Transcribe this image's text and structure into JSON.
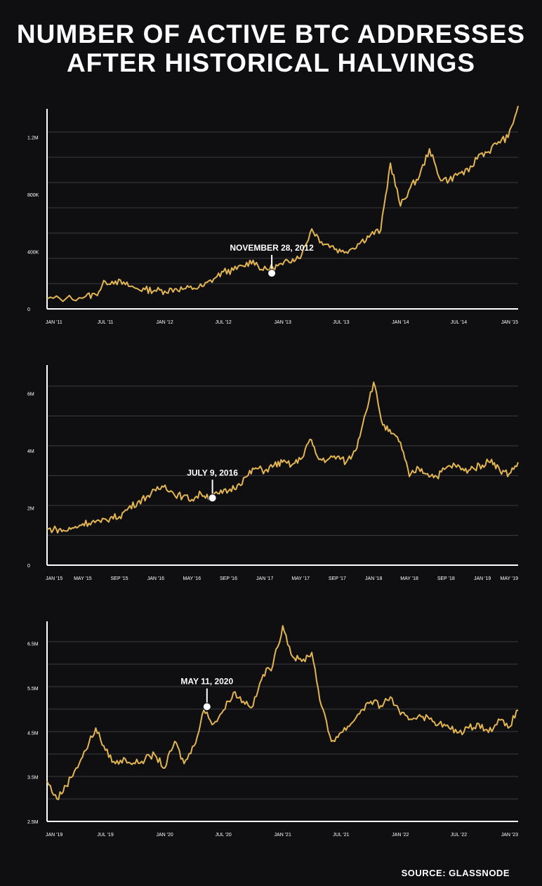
{
  "title": {
    "line1": "NUMBER OF ACTIVE BTC ADDRESSES",
    "line2": "AFTER HISTORICAL HALVINGS"
  },
  "source": "SOURCE: GLASSNODE",
  "colors": {
    "background": "#0f0f12",
    "line": "#e2b552",
    "grid": "#3a3a40",
    "axis": "#ffffff",
    "text": "#ffffff"
  },
  "chart_data": [
    {
      "type": "line",
      "xlabel": "",
      "ylabel": "",
      "ylim": [
        0,
        1400000
      ],
      "grid": true,
      "yticks": [
        0,
        400000,
        800000,
        1200000
      ],
      "yticklabels": [
        "0",
        "400K",
        "800K",
        "1.2M"
      ],
      "xticks": [
        "2011-01",
        "2011-07",
        "2012-01",
        "2012-07",
        "2013-01",
        "2013-07",
        "2014-01",
        "2014-07",
        "2015-01"
      ],
      "xticklabels": [
        "JAN '11",
        "JUL '11",
        "JAN '12",
        "JUL '12",
        "JAN '13",
        "JUL '13",
        "JAN '14",
        "JUL '14",
        "JAN '15"
      ],
      "xlim": [
        "2011-01",
        "2015-01"
      ],
      "annotation": {
        "label": "NOVEMBER 28, 2012",
        "x": "2012-11-28",
        "y": 250000
      },
      "series": [
        {
          "x": [
            "2011-01",
            "2011-03",
            "2011-05",
            "2011-06",
            "2011-07",
            "2011-08",
            "2011-09",
            "2011-10",
            "2011-11",
            "2011-12",
            "2012-01",
            "2012-02",
            "2012-03",
            "2012-04",
            "2012-05",
            "2012-06",
            "2012-07",
            "2012-08",
            "2012-09",
            "2012-10",
            "2012-11",
            "2012-12",
            "2013-01",
            "2013-02",
            "2013-03",
            "2013-04",
            "2013-05",
            "2013-06",
            "2013-07",
            "2013-08",
            "2013-09",
            "2013-10",
            "2013-11",
            "2013-12",
            "2014-01",
            "2014-02",
            "2014-03",
            "2014-04",
            "2014-05",
            "2014-06",
            "2014-07",
            "2014-08",
            "2014-09",
            "2014-10",
            "2014-11",
            "2014-12",
            "2015-01"
          ],
          "values": [
            70000,
            72000,
            88000,
            100000,
            190000,
            195000,
            170000,
            145000,
            135000,
            130000,
            125000,
            140000,
            140000,
            145000,
            160000,
            210000,
            260000,
            270000,
            300000,
            340000,
            270000,
            290000,
            310000,
            350000,
            380000,
            560000,
            470000,
            440000,
            400000,
            420000,
            470000,
            520000,
            550000,
            1020000,
            720000,
            850000,
            930000,
            1120000,
            920000,
            900000,
            950000,
            960000,
            1080000,
            1100000,
            1170000,
            1200000,
            1420000
          ]
        }
      ]
    },
    {
      "type": "line",
      "xlabel": "",
      "ylabel": "",
      "ylim": [
        0,
        7000000
      ],
      "grid": true,
      "yticks": [
        0,
        2000000,
        4000000,
        6000000
      ],
      "yticklabels": [
        "0",
        "2M",
        "4M",
        "6M"
      ],
      "xticks": [
        "2015-01",
        "2015-05",
        "2015-09",
        "2016-01",
        "2016-05",
        "2016-09",
        "2017-01",
        "2017-05",
        "2017-09",
        "2018-01",
        "2018-05",
        "2018-09",
        "2019-01",
        "2019-05"
      ],
      "xticklabels": [
        "JAN '15",
        "MAY '15",
        "SEP '15",
        "JAN '16",
        "MAY '16",
        "SEP '16",
        "JAN '17",
        "MAY '17",
        "SEP '17",
        "JAN '18",
        "MAY '18",
        "SEP '18",
        "JAN '19",
        "MAY '19"
      ],
      "xlim": [
        "2015-01",
        "2019-05"
      ],
      "annotation": {
        "label": "JULY 9, 2016",
        "x": "2016-07-09",
        "y": 2350000
      },
      "series": [
        {
          "x": [
            "2015-01",
            "2015-02",
            "2015-03",
            "2015-04",
            "2015-05",
            "2015-06",
            "2015-07",
            "2015-08",
            "2015-09",
            "2015-10",
            "2015-11",
            "2015-12",
            "2016-01",
            "2016-02",
            "2016-03",
            "2016-04",
            "2016-05",
            "2016-06",
            "2016-07",
            "2016-08",
            "2016-09",
            "2016-10",
            "2016-11",
            "2016-12",
            "2017-01",
            "2017-02",
            "2017-03",
            "2017-04",
            "2017-05",
            "2017-06",
            "2017-07",
            "2017-08",
            "2017-09",
            "2017-10",
            "2017-11",
            "2017-12",
            "2018-01",
            "2018-02",
            "2018-03",
            "2018-04",
            "2018-05",
            "2018-06",
            "2018-07",
            "2018-08",
            "2018-09",
            "2018-10",
            "2018-11",
            "2018-12",
            "2019-01",
            "2019-02",
            "2019-03",
            "2019-04",
            "2019-05"
          ],
          "values": [
            1250000,
            1260000,
            1200000,
            1300000,
            1450000,
            1520000,
            1500000,
            1650000,
            1700000,
            2000000,
            2200000,
            2400000,
            2600000,
            2800000,
            2500000,
            2400000,
            2300000,
            2500000,
            2400000,
            2500000,
            2600000,
            2800000,
            3100000,
            3400000,
            3300000,
            3500000,
            3600000,
            3500000,
            3700000,
            4400000,
            3700000,
            3700000,
            3800000,
            3600000,
            4000000,
            5200000,
            6400000,
            4900000,
            4600000,
            4300000,
            3100000,
            3400000,
            3200000,
            3100000,
            3400000,
            3500000,
            3300000,
            3400000,
            3500000,
            3700000,
            3300000,
            3200000,
            3600000
          ]
        }
      ]
    },
    {
      "type": "line",
      "xlabel": "",
      "ylabel": "",
      "ylim": [
        2500000,
        7000000
      ],
      "grid": true,
      "yticks": [
        2500000,
        3500000,
        4500000,
        5500000,
        6500000
      ],
      "yticklabels": [
        "2.5M",
        "3.5M",
        "4.5M",
        "5.5M",
        "6.5M"
      ],
      "xticks": [
        "2019-01",
        "2019-07",
        "2020-01",
        "2020-07",
        "2021-01",
        "2021-07",
        "2022-01",
        "2022-07",
        "2023-01"
      ],
      "xticklabels": [
        "JAN '19",
        "JUL '19",
        "JAN '20",
        "JUL '20",
        "JAN '21",
        "JUL '21",
        "JAN '22",
        "JUL '22",
        "JAN '23"
      ],
      "xlim": [
        "2019-01",
        "2023-01"
      ],
      "annotation": {
        "label": "MAY 11, 2020",
        "x": "2020-05-11",
        "y": 5080000
      },
      "series": [
        {
          "x": [
            "2019-01",
            "2019-02",
            "2019-03",
            "2019-04",
            "2019-05",
            "2019-06",
            "2019-07",
            "2019-08",
            "2019-09",
            "2019-10",
            "2019-11",
            "2019-12",
            "2020-01",
            "2020-02",
            "2020-03",
            "2020-04",
            "2020-05",
            "2020-06",
            "2020-07",
            "2020-08",
            "2020-09",
            "2020-10",
            "2020-11",
            "2020-12",
            "2021-01",
            "2021-02",
            "2021-03",
            "2021-04",
            "2021-05",
            "2021-06",
            "2021-07",
            "2021-08",
            "2021-09",
            "2021-10",
            "2021-11",
            "2021-12",
            "2022-01",
            "2022-02",
            "2022-03",
            "2022-04",
            "2022-05",
            "2022-06",
            "2022-07",
            "2022-08",
            "2022-09",
            "2022-10",
            "2022-11",
            "2022-12",
            "2023-01"
          ],
          "values": [
            3400000,
            3000000,
            3300000,
            3700000,
            4100000,
            4600000,
            4100000,
            3800000,
            3900000,
            3800000,
            3900000,
            4000000,
            3700000,
            4300000,
            3800000,
            4200000,
            5000000,
            4700000,
            5000000,
            5400000,
            5200000,
            5100000,
            5800000,
            6000000,
            6900000,
            6200000,
            6100000,
            6300000,
            5100000,
            4300000,
            4500000,
            4700000,
            5000000,
            5200000,
            5100000,
            5300000,
            4900000,
            4800000,
            4900000,
            4800000,
            4700000,
            4600000,
            4500000,
            4600000,
            4700000,
            4500000,
            4800000,
            4600000,
            5000000
          ]
        }
      ]
    }
  ]
}
